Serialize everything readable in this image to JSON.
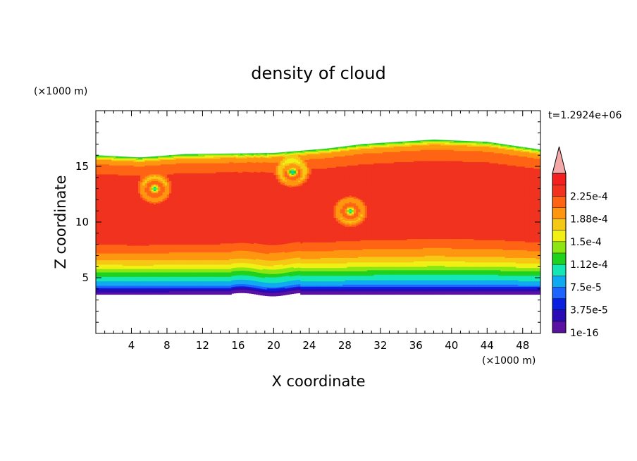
{
  "chart_data": {
    "type": "heatmap",
    "title": "density of cloud",
    "xlabel": "X coordinate",
    "ylabel": "Z coordinate",
    "x_unit": "(×1000 m)",
    "y_unit": "(×1000 m)",
    "time_label": "t=1.2924e+06",
    "xlim": [
      0,
      50
    ],
    "ylim": [
      0,
      20
    ],
    "x_ticks": [
      4,
      8,
      12,
      16,
      20,
      24,
      28,
      32,
      36,
      40,
      44,
      48
    ],
    "y_ticks": [
      5,
      10,
      15
    ],
    "colorbar": {
      "levels": [
        1e-16,
        1.875e-05,
        3.75e-05,
        5.625e-05,
        7.5e-05,
        9.375e-05,
        0.0001125,
        0.00013125,
        0.00015,
        0.00016875,
        0.0001875,
        0.00020625,
        0.000225,
        0.00024375
      ],
      "labels": [
        {
          "value": 1e-16,
          "text": "1e-16"
        },
        {
          "value": 3.75e-05,
          "text": "3.75e-5"
        },
        {
          "value": 7.5e-05,
          "text": "7.5e-5"
        },
        {
          "value": 0.0001125,
          "text": "1.12e-4"
        },
        {
          "value": 0.00015,
          "text": "1.5e-4"
        },
        {
          "value": 0.0001875,
          "text": "1.88e-4"
        },
        {
          "value": 0.000225,
          "text": "2.25e-4"
        }
      ],
      "colors": [
        "#5a10a0",
        "#2a0ab4",
        "#0a1ee0",
        "#1e64ff",
        "#10aaf0",
        "#14e6b4",
        "#1ed21e",
        "#8ce614",
        "#f0f014",
        "#f5c814",
        "#ff9610",
        "#ff6414",
        "#f0321e",
        "#f42020"
      ],
      "extend_color": "#f4a8a8"
    },
    "field": {
      "cloud_base_z": 3.5,
      "cloud_top_z": 16.0,
      "top_profile": [
        [
          0,
          16.0
        ],
        [
          5,
          15.8
        ],
        [
          10,
          16.1
        ],
        [
          20,
          16.2
        ],
        [
          26,
          16.6
        ],
        [
          30,
          17.0
        ],
        [
          38,
          17.4
        ],
        [
          44,
          17.2
        ],
        [
          50,
          16.5
        ]
      ],
      "vertical_profile": [
        [
          3.5,
          1e-16
        ],
        [
          3.9,
          3e-05
        ],
        [
          4.3,
          7.5e-05
        ],
        [
          4.8,
          0.0001
        ],
        [
          5.3,
          0.00012
        ],
        [
          5.8,
          0.00015
        ],
        [
          6.3,
          0.000175
        ],
        [
          6.8,
          0.000195
        ],
        [
          7.4,
          0.00021
        ],
        [
          8.2,
          0.00023
        ],
        [
          12.5,
          0.000242
        ],
        [
          14.0,
          0.00023
        ],
        [
          15.0,
          0.000215
        ],
        [
          15.6,
          0.00019
        ],
        [
          16.0,
          0.00012
        ]
      ],
      "vortex_centers": [
        [
          6.5,
          13.0
        ],
        [
          22.0,
          14.5
        ],
        [
          28.5,
          11.0
        ]
      ]
    }
  }
}
